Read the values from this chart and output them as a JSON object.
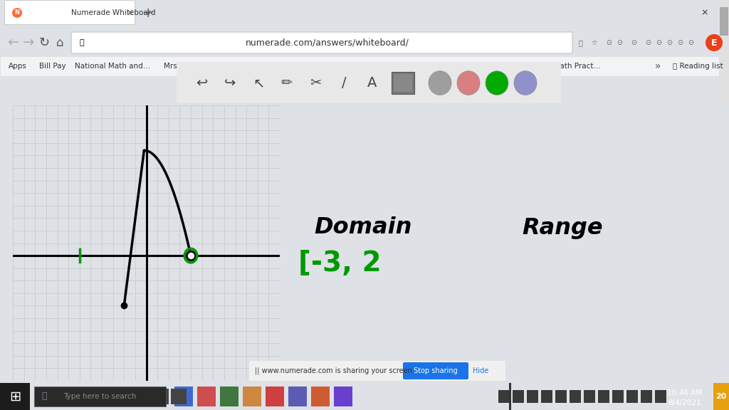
{
  "bg_color": "#ffffff",
  "browser_bg": "#dee1e6",
  "content_bg": "#ffffff",
  "grid_bg": "#ebebeb",
  "grid_line_color": "#c8c8c8",
  "green_color": "#009900",
  "domain_text": "Domain",
  "range_text": "Range",
  "domain_value": "[-3, 2",
  "toolbar_bg": "#e0e0e0",
  "addr_bg": "#ffffff",
  "taskbar_bg": "#1c1c1c",
  "taskbar_text": "#ffffff",
  "blue_btn": "#1a73e8",
  "tab_active_bg": "#ffffff",
  "bookmark_bg": "#f1f3f4"
}
